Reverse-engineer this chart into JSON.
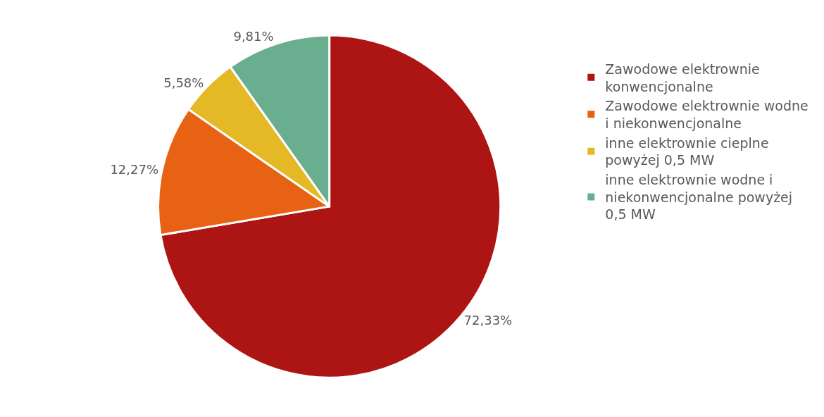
{
  "chart_data": {
    "type": "pie",
    "categories": [
      "Zawodowe elektrownie konwencjonalne",
      "Zawodowe elektrownie wodne i niekonwencjonalne",
      "inne elektrownie cieplne powyżej 0,5 MW",
      "inne elektrownie wodne i niekonwencjonalne powyżej 0,5 MW"
    ],
    "values": [
      72.33,
      12.27,
      5.58,
      9.81
    ],
    "value_labels": [
      "72,33%",
      "12,27%",
      "5,58%",
      "9,81%"
    ],
    "colors": [
      "#ad1414",
      "#e86213",
      "#e5b826",
      "#6aae90"
    ],
    "legend": "right"
  }
}
